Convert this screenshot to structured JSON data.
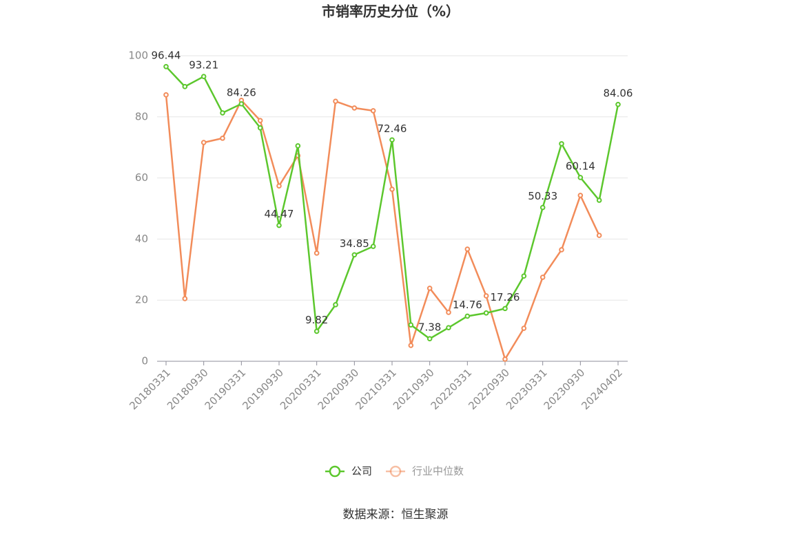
{
  "chart_data": {
    "type": "line",
    "title": "市销率历史分位（%）",
    "categories": [
      "20180331",
      null,
      "20180930",
      null,
      "20190331",
      null,
      "20190930",
      null,
      "20200331",
      null,
      "20200930",
      null,
      "20210331",
      null,
      "20210930",
      null,
      "20220331",
      null,
      "20220930",
      null,
      "20230331",
      null,
      "20230930",
      null,
      "20240402"
    ],
    "series": [
      {
        "name": "公司",
        "color": "#5cc72d",
        "values": [
          96.44,
          89.9,
          93.21,
          81.3,
          84.26,
          76.4,
          44.47,
          70.5,
          9.82,
          18.5,
          34.85,
          37.6,
          72.46,
          11.9,
          7.38,
          11.0,
          14.76,
          15.8,
          17.26,
          27.9,
          50.33,
          71.2,
          60.14,
          52.7,
          84.06
        ],
        "value_labels": [
          "96.44",
          null,
          "93.21",
          null,
          "84.26",
          null,
          "44.47",
          null,
          "9.82",
          null,
          "34.85",
          null,
          "72.46",
          null,
          "7.38",
          null,
          "14.76",
          null,
          "17.26",
          null,
          "50.33",
          null,
          "60.14",
          null,
          "84.06"
        ]
      },
      {
        "name": "行业中位数",
        "color": "#f28c5a",
        "values": [
          87.2,
          20.5,
          71.6,
          73.0,
          85.4,
          78.8,
          57.4,
          67.3,
          35.4,
          85.1,
          82.9,
          82.0,
          56.3,
          5.2,
          23.9,
          16.0,
          36.7,
          21.4,
          0.7,
          10.8,
          27.5,
          36.5,
          54.3,
          41.2,
          null
        ]
      }
    ],
    "ylim": [
      0,
      100
    ],
    "yticks": [
      0,
      20,
      40,
      60,
      80,
      100
    ],
    "grid": true,
    "source": "数据来源：恒生聚源"
  }
}
